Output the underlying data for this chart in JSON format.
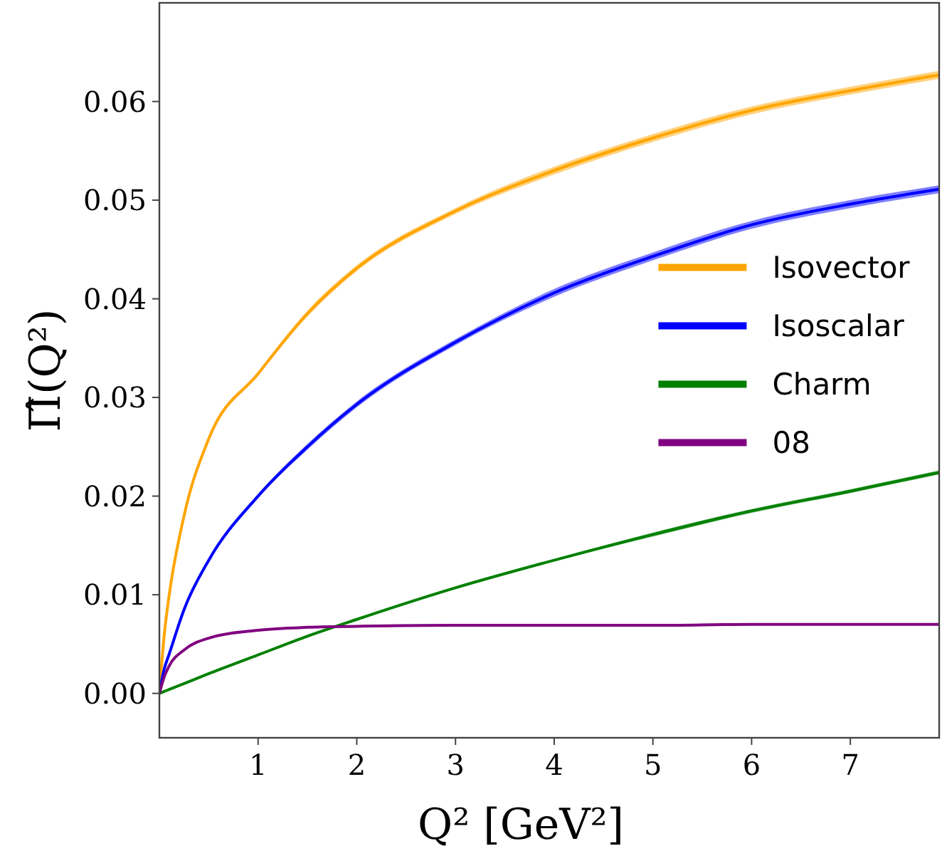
{
  "chart_data": {
    "type": "line",
    "xlabel": "Q² [GeV²]",
    "ylabel": "Π̂(Q²)",
    "x": [
      0,
      0.05,
      0.1,
      0.25,
      0.5,
      1,
      1.5,
      2,
      3,
      4,
      5,
      6,
      7,
      7.9
    ],
    "xlim": [
      0,
      7.9
    ],
    "ylim": [
      -0.0045,
      0.07
    ],
    "xticks": [
      1,
      2,
      3,
      4,
      5,
      6,
      7
    ],
    "yticks": [
      {
        "value": 0,
        "label": "0.00"
      },
      {
        "value": 0.01,
        "label": "0.01"
      },
      {
        "value": 0.02,
        "label": "0.02"
      },
      {
        "value": 0.03,
        "label": "0.03"
      },
      {
        "value": 0.04,
        "label": "0.04"
      },
      {
        "value": 0.05,
        "label": "0.05"
      },
      {
        "value": 0.06,
        "label": "0.06"
      }
    ],
    "grid": false,
    "legend": "center right",
    "line_style": "solid",
    "marker": "none",
    "series": [
      {
        "name": "Isovector",
        "color": "#ffa500",
        "values": [
          0,
          0.006,
          0.01,
          0.018,
          0.0258,
          0.0324,
          0.0385,
          0.0431,
          0.0489,
          0.053,
          0.0563,
          0.0591,
          0.0611,
          0.0627
        ],
        "lower": [
          0,
          0.006,
          0.01,
          0.0179,
          0.0256,
          0.0322,
          0.0382,
          0.0428,
          0.0486,
          0.0526,
          0.0559,
          0.0587,
          0.0607,
          0.0623
        ],
        "upper": [
          0,
          0.006,
          0.01,
          0.0181,
          0.026,
          0.0326,
          0.0388,
          0.0434,
          0.0492,
          0.0534,
          0.0567,
          0.0595,
          0.0615,
          0.0631
        ]
      },
      {
        "name": "Isoscalar",
        "color": "#0000ff",
        "values": [
          0,
          0.0025,
          0.004,
          0.0085,
          0.0135,
          0.02,
          0.025,
          0.0293,
          0.0356,
          0.0406,
          0.0443,
          0.0475,
          0.0496,
          0.0511
        ],
        "lower": [
          0,
          0.0025,
          0.004,
          0.0084,
          0.0133,
          0.0198,
          0.0247,
          0.029,
          0.0353,
          0.0402,
          0.0439,
          0.0471,
          0.0492,
          0.0507
        ],
        "upper": [
          0,
          0.0025,
          0.004,
          0.0086,
          0.0137,
          0.0202,
          0.0253,
          0.0296,
          0.0359,
          0.041,
          0.0447,
          0.0479,
          0.05,
          0.0515
        ]
      },
      {
        "name": "Charm",
        "color": "#008000",
        "values": [
          0,
          0.0002,
          0.0004,
          0.001,
          0.002,
          0.0039,
          0.0058,
          0.0075,
          0.0107,
          0.0135,
          0.0161,
          0.0185,
          0.0205,
          0.0224
        ],
        "lower": [
          0,
          0.0002,
          0.0004,
          0.001,
          0.002,
          0.0039,
          0.0057,
          0.0074,
          0.0106,
          0.0134,
          0.0159,
          0.0183,
          0.0203,
          0.0222
        ],
        "upper": [
          0,
          0.0002,
          0.0004,
          0.001,
          0.002,
          0.0039,
          0.0059,
          0.0076,
          0.0108,
          0.0136,
          0.0163,
          0.0187,
          0.0207,
          0.0226
        ]
      },
      {
        "name": "08",
        "color": "#800080",
        "values": [
          0,
          0.0017,
          0.0028,
          0.0044,
          0.0056,
          0.0064,
          0.0067,
          0.0068,
          0.0069,
          0.0069,
          0.0069,
          0.007,
          0.007,
          0.007
        ],
        "lower": [
          0,
          0.0017,
          0.0027,
          0.0043,
          0.0055,
          0.0063,
          0.0066,
          0.0067,
          0.0068,
          0.0068,
          0.0068,
          0.0069,
          0.0069,
          0.0069
        ],
        "upper": [
          0,
          0.0017,
          0.0029,
          0.0045,
          0.0057,
          0.0065,
          0.0068,
          0.0069,
          0.007,
          0.007,
          0.007,
          0.0071,
          0.0071,
          0.0071
        ]
      }
    ]
  }
}
